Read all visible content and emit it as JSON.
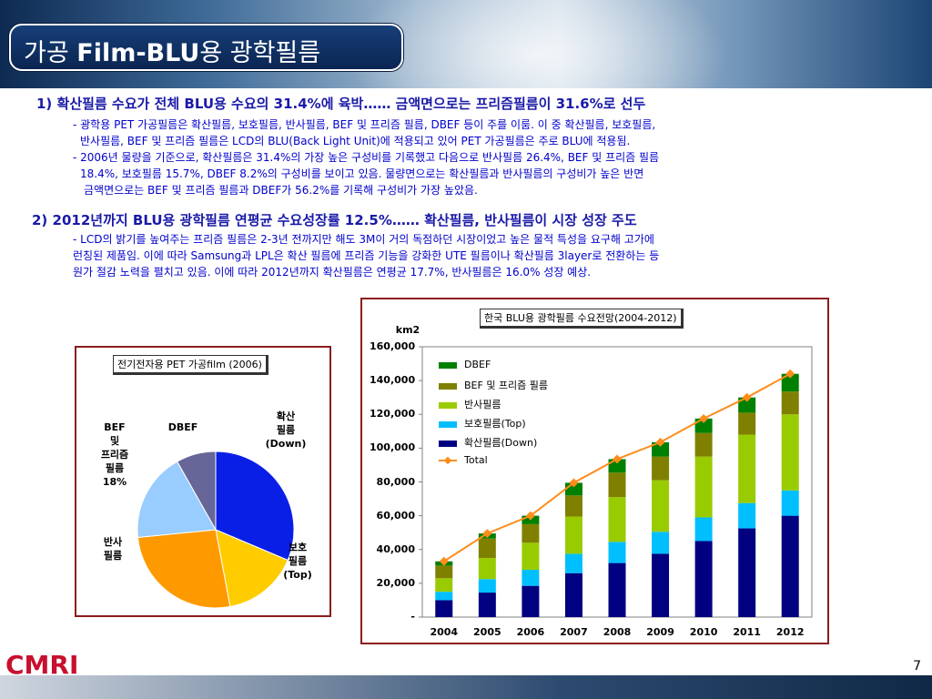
{
  "slide": {
    "title_prefix": "가공 ",
    "title_bold": "Film-BLU",
    "title_suffix": "용 광학필름",
    "page_number": "7",
    "logo": "CMRI"
  },
  "section1": {
    "heading": "1) 확산필름 수요가 전체 BLU용 수요의 31.4%에 육박…… 금액면으로는 프리즘필름이 31.6%로 선두",
    "lines": [
      "- 광학용 PET 가공필름은 확산필름, 보호필름, 반사필름, BEF 및 프리즘 필름, DBEF 등이 주를 이룸. 이 중 확산필름, 보호필름,",
      "반사필름, BEF 및 프리즘 필름은 LCD의 BLU(Back Light Unit)에 적용되고 있어 PET 가공필름은 주로 BLU에 적용됨.",
      "- 2006년 물량을 기준으로, 확산필름은 31.4%의 가장 높은 구성비를 기록했고 다음으로 반사필름 26.4%, BEF 및 프리즘 필름",
      "18.4%, 보호필름 15.7%, DBEF 8.2%의 구성비를 보이고 있음. 물량면으로는 확산필름과 반사필름의 구성비가 높은 반면",
      "금액면으로는 BEF 및 프리즘 필름과 DBEF가 56.2%를 기록해 구성비가 가장 높았음."
    ]
  },
  "section2": {
    "heading": "2) 2012년까지 BLU용 광학필름 연평균 수요성장률 12.5%…… 확산필름, 반사필름이 시장 성장 주도",
    "lines": [
      "- LCD의 밝기를 높여주는 프리즘 필름은 2-3년 전까지만 해도 3M이 거의 독점하던 시장이었고 높은 물적 특성을 요구해 고가에",
      "런칭된 제품임. 이에 따라 Samsung과 LPL은 확산 필름에  프리즘 기능을 강화한 UTE 필름이나 확산필름 3layer로 전환하는 등",
      "원가 절감 노력을 펼치고 있음. 이에 따라 2012년까지 확산필름은 연평균 17.7%, 반사필름은 16.0% 성장 예상."
    ]
  },
  "pie": {
    "caption": "전기전자용 PET 가공film (2006)",
    "labels": {
      "diffusion": "확산\n필름\n(Down)",
      "protect": "보호\n필름\n(Top)",
      "reflect": "반사\n필름",
      "bef": "BEF\n및\n프리즘\n필름\n18%",
      "dbef": "DBEF"
    }
  },
  "bar": {
    "caption": "한국 BLU용 광학필름 수요전망(2004-2012)",
    "unit": "km2",
    "legend": [
      "DBEF",
      "BEF 및 프리즘 필름",
      "반사필름",
      "보호필름(Top)",
      "확산필름(Down)",
      "Total"
    ]
  },
  "colors": {
    "diffusion": "#000080",
    "protect": "#00bfff",
    "reflect": "#99cc00",
    "bef": "#808000",
    "dbef": "#008000",
    "total": "#ff8c1a",
    "pie_diffusion": "#0a1fe6",
    "pie_protect": "#ffcc00",
    "pie_reflect": "#ff9900",
    "pie_bef": "#99ccff",
    "pie_dbef": "#666699"
  },
  "chart_data": [
    {
      "type": "pie",
      "title": "전기전자용 PET 가공film (2006)",
      "categories": [
        "확산필름(Down)",
        "보호필름(Top)",
        "반사필름",
        "BEF 및 프리즘 필름",
        "DBEF"
      ],
      "values": [
        31.4,
        15.7,
        26.4,
        18.4,
        8.2
      ],
      "unit": "%"
    },
    {
      "type": "bar",
      "stacked": true,
      "title": "한국 BLU용 광학필름 수요전망(2004-2012)",
      "ylabel": "km2",
      "categories": [
        "2004",
        "2005",
        "2006",
        "2007",
        "2008",
        "2009",
        "2010",
        "2011",
        "2012"
      ],
      "series": [
        {
          "name": "확산필름(Down)",
          "values": [
            10000,
            14500,
            18500,
            26000,
            32000,
            37500,
            45000,
            52500,
            60000
          ]
        },
        {
          "name": "보호필름(Top)",
          "values": [
            5000,
            8000,
            9500,
            11500,
            12500,
            13000,
            14000,
            15000,
            15000
          ]
        },
        {
          "name": "반사필름",
          "values": [
            8000,
            12500,
            16000,
            22000,
            26500,
            30500,
            36000,
            40500,
            45000
          ]
        },
        {
          "name": "BEF 및 프리즘 필름",
          "values": [
            7500,
            11500,
            11000,
            12500,
            14500,
            14000,
            14000,
            13000,
            13500
          ]
        },
        {
          "name": "DBEF",
          "values": [
            2500,
            3000,
            5000,
            7500,
            8000,
            8500,
            8500,
            9000,
            10500
          ]
        }
      ],
      "total": {
        "name": "Total",
        "values": [
          33000,
          49500,
          60000,
          79500,
          93500,
          103500,
          117500,
          130000,
          144000
        ]
      },
      "ylim": [
        0,
        160000
      ],
      "yticks": [
        "-",
        "20,000",
        "40,000",
        "60,000",
        "80,000",
        "100,000",
        "120,000",
        "140,000",
        "160,000"
      ],
      "legend_position": "top-left"
    }
  ]
}
